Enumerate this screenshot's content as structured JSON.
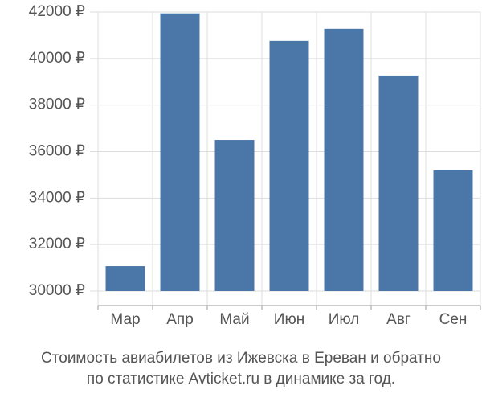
{
  "chart_data": {
    "type": "bar",
    "title": [
      "Стоимость авиабилетов из Ижевска в Ереван и обратно",
      "по статистике Avticket.ru в динамике за год."
    ],
    "categories": [
      "Мар",
      "Апр",
      "Май",
      "Июн",
      "Июл",
      "Авг",
      "Сен"
    ],
    "values": [
      31070,
      41940,
      36500,
      40760,
      41280,
      39270,
      35190
    ],
    "color": "#4a76a8",
    "ylim": [
      30000,
      42000
    ],
    "yticks": [
      {
        "value": 30000,
        "label": "30000 ₽"
      },
      {
        "value": 32000,
        "label": "32000 ₽"
      },
      {
        "value": 34000,
        "label": "34000 ₽"
      },
      {
        "value": 36000,
        "label": "36000 ₽"
      },
      {
        "value": 38000,
        "label": "38000 ₽"
      },
      {
        "value": 40000,
        "label": "40000 ₽"
      },
      {
        "value": 42000,
        "label": "42000 ₽"
      }
    ],
    "grid": true
  }
}
